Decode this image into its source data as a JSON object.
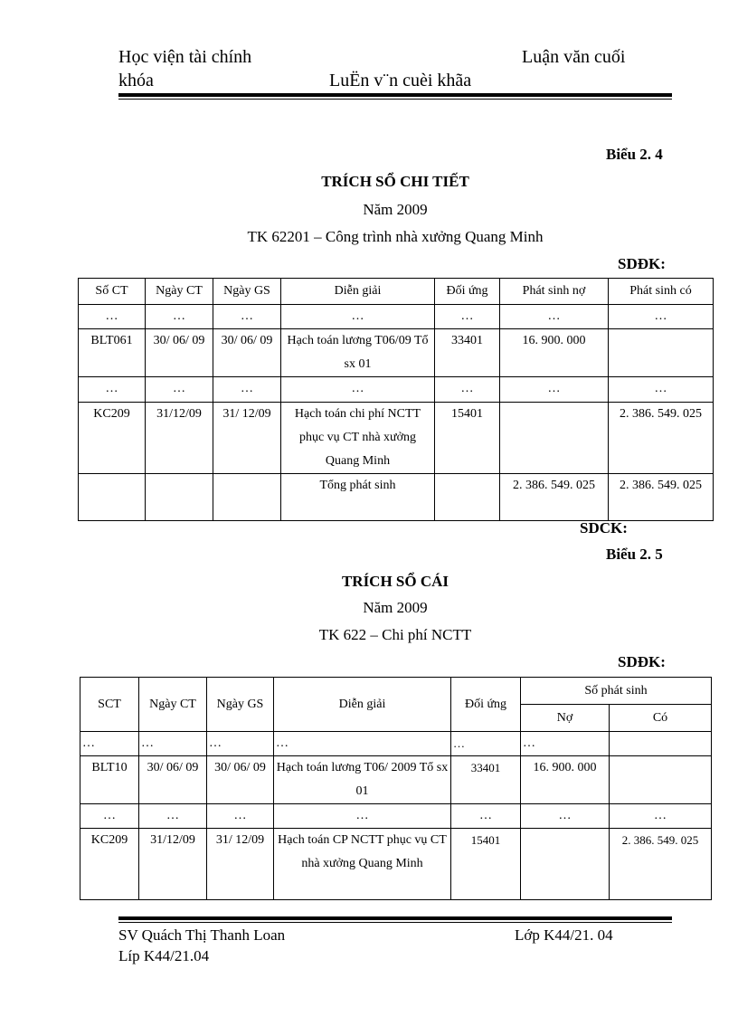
{
  "header": {
    "left_line1": "Học viện tài chính",
    "right_line1": "Luận văn cuối",
    "left_line2": "khóa",
    "center_line2": "LuËn v¨n cuèi khãa"
  },
  "section1": {
    "label": "Biểu 2. 4",
    "title": "TRÍCH SỔ CHI TIẾT",
    "year": "Năm 2009",
    "account": "TK 62201  – Công trình nhà xưởng Quang Minh",
    "opening": "SDĐK:",
    "closing": "SDCK:",
    "columns": [
      "Số CT",
      "Ngày CT",
      "Ngày GS",
      "Diễn giải",
      "Đối ứng",
      "Phát sinh nợ",
      "Phát sinh có"
    ],
    "rows": [
      [
        "…",
        "…",
        "…",
        "…",
        "…",
        "…",
        "…"
      ],
      [
        "BLT061",
        "30/ 06/ 09",
        "30/ 06/ 09",
        "Hạch toán lương T06/09 Tổ sx 01",
        "33401",
        "16. 900. 000",
        ""
      ],
      [
        "…",
        "…",
        "…",
        "…",
        "…",
        "…",
        "…"
      ],
      [
        "KC209",
        "31/12/09",
        "31/ 12/09",
        "Hạch toán chi phí NCTT phục vụ CT nhà xưởng Quang Minh",
        "15401",
        "",
        "2. 386. 549. 025"
      ],
      [
        "",
        "",
        "",
        "Tổng phát sinh",
        "",
        "2. 386. 549. 025",
        "2. 386. 549. 025"
      ]
    ]
  },
  "section2": {
    "label": "Biểu 2. 5",
    "title": "TRÍCH SỔ CÁI",
    "year": "Năm 2009",
    "account": "TK 622 – Chi phí NCTT",
    "opening": "SDĐK:",
    "columns": [
      "SCT",
      "Ngày CT",
      "Ngày GS",
      "Diễn giải",
      "Đối ứng"
    ],
    "group_header": "Số phát sinh",
    "sub_columns": [
      "Nợ",
      "Có"
    ],
    "rows": [
      [
        "…",
        "…",
        "…",
        "…",
        "…",
        "…",
        ""
      ],
      [
        "BLT10",
        "30/ 06/ 09",
        "30/ 06/ 09",
        "Hạch toán lương T06/ 2009 Tổ sx 01",
        "33401",
        "16. 900. 000",
        ""
      ],
      [
        "…",
        "…",
        "…",
        "…",
        "…",
        "…",
        "…"
      ],
      [
        "KC209",
        "31/12/09",
        "31/ 12/09",
        "Hạch toán CP NCTT phục vụ CT nhà xưởng Quang Minh",
        "15401",
        "",
        "2. 386. 549. 025"
      ]
    ]
  },
  "footer": {
    "student": "SV Quách Thị Thanh Loan",
    "class_right": "Lớp K44/21. 04",
    "class_line2": "Líp K44/21.04"
  }
}
